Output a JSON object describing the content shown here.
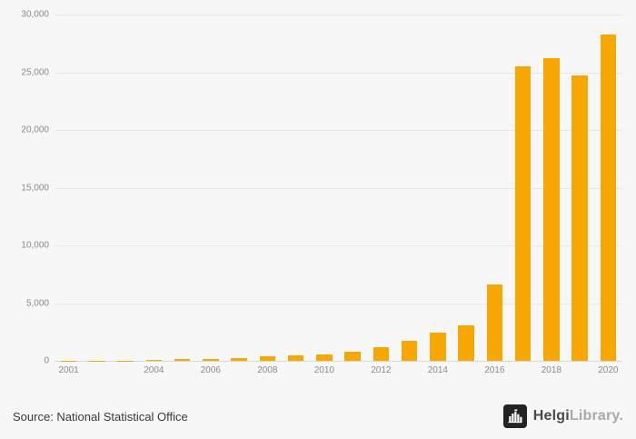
{
  "chart_data": {
    "type": "bar",
    "title": "",
    "xlabel": "",
    "ylabel": "",
    "categories": [
      2001,
      2002,
      2003,
      2004,
      2005,
      2006,
      2007,
      2008,
      2009,
      2010,
      2011,
      2012,
      2013,
      2014,
      2015,
      2016,
      2017,
      2018,
      2019,
      2020
    ],
    "values": [
      10,
      15,
      30,
      100,
      180,
      150,
      200,
      380,
      450,
      560,
      750,
      1150,
      1750,
      2450,
      3050,
      6600,
      25550,
      26200,
      24750,
      28250
    ],
    "ylim": [
      0,
      30000
    ],
    "ytick_values": [
      0,
      5000,
      10000,
      15000,
      20000,
      25000,
      30000
    ],
    "ytick_labels": [
      "0",
      "5,000",
      "10,000",
      "15,000",
      "20,000",
      "25,000",
      "30,000"
    ],
    "xtick_labels": [
      "2001",
      "2004",
      "2006",
      "2008",
      "2010",
      "2012",
      "2014",
      "2016",
      "2018",
      "2020"
    ],
    "bar_color": "#f6a800",
    "grid": "horizontal",
    "legend": "none",
    "background": "#f7f7f7"
  },
  "footer": {
    "source_label": "Source: National Statistical Office",
    "logo": {
      "brand_primary": "Helgi",
      "brand_secondary": "Library.",
      "icon": "skyline-icon",
      "badge_color": "#242424"
    }
  }
}
